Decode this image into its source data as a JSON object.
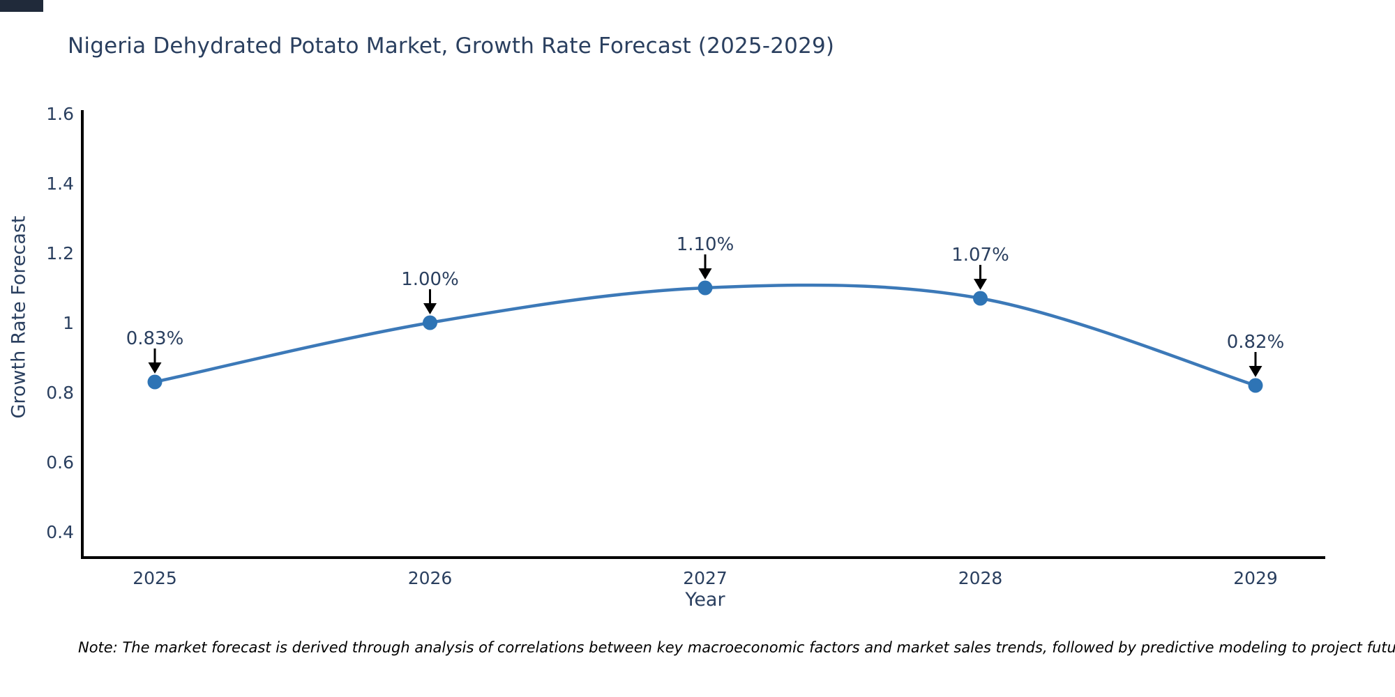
{
  "chart_data": {
    "type": "line",
    "line_shape": "spline",
    "title": "Nigeria Dehydrated Potato Market, Growth Rate Forecast (2025-2029)",
    "x": [
      "2025",
      "2026",
      "2027",
      "2028",
      "2029"
    ],
    "series": [
      {
        "name": "Growth Rate Forecast",
        "values": [
          0.83,
          1.0,
          1.1,
          1.07,
          0.82
        ]
      }
    ],
    "point_labels": [
      "0.83%",
      "1.00%",
      "1.10%",
      "1.07%",
      "0.82%"
    ],
    "xlabel": "Year",
    "ylabel": "Growth Rate Forecast",
    "yticks": [
      0.4,
      0.6,
      0.8,
      1,
      1.2,
      1.4,
      1.6
    ],
    "ytick_labels": [
      "0.4",
      "0.6",
      "0.8",
      "1",
      "1.2",
      "1.4",
      "1.6"
    ],
    "ylim": [
      0.32,
      1.6
    ],
    "grid": false,
    "legend": "none",
    "markers": true,
    "annotation_arrows": true,
    "colors": {
      "line": "#3c79b8",
      "marker": "#2e74b5",
      "arrow": "#000000",
      "axis_line": "#000000",
      "text": "#2a3f5f",
      "note_text": "#000000",
      "background": "#ffffff",
      "top_left_artifact": "#202a3a"
    }
  },
  "note": "Note: The market forecast is derived through analysis of correlations between key macroeconomic factors and market sales trends, followed by predictive modeling to project future sales"
}
